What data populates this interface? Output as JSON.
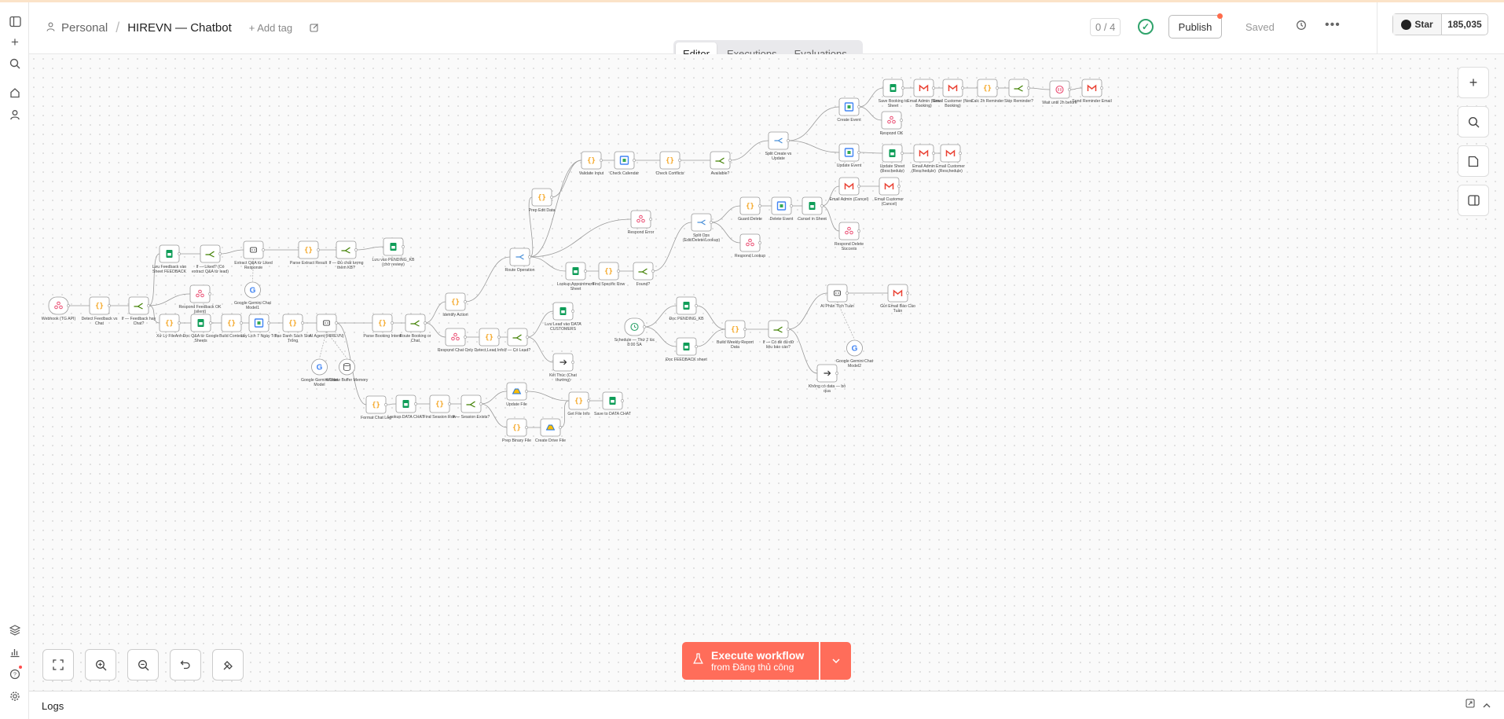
{
  "header": {
    "project": "Personal",
    "workflow_name": "HIREVN — Chatbot",
    "add_tag": "+ Add tag",
    "counter": "0 / 4",
    "publish": "Publish",
    "saved": "Saved",
    "star": "Star",
    "star_count": "185,035"
  },
  "tabs": [
    "Editor",
    "Executions",
    "Evaluations"
  ],
  "execute": {
    "title": "Execute workflow",
    "subtitle": "from Đăng thủ công"
  },
  "logs": {
    "label": "Logs"
  },
  "nodes": [
    {
      "label": "Webhook (TG API)",
      "icon": "webhook",
      "color": "#ea4b71"
    },
    {
      "label": "Detect Feedback vs Chat",
      "icon": "code"
    },
    {
      "label": "If — Feedback hay Chat?",
      "icon": "if"
    },
    {
      "label": "Lưu Feedback vào Sheet FEEDBACK",
      "icon": "sheets"
    },
    {
      "label": "If — Liked? (Có extract Q&A từ lead)",
      "icon": "if"
    },
    {
      "label": "Extract Q&A từ Liked Response",
      "icon": "agent"
    },
    {
      "label": "Parse Extract Result",
      "icon": "code"
    },
    {
      "label": "If — Đủ chất lượng thêm KB?",
      "icon": "if"
    },
    {
      "label": "Lưu vào PENDING_KB (chờ review)",
      "icon": "sheets"
    },
    {
      "label": "Google Gemini Chat Model1",
      "icon": "gemini"
    },
    {
      "label": "Respond Feedback OK (silent)",
      "icon": "webhook"
    },
    {
      "label": "Xử Lý FileAnh",
      "icon": "code"
    },
    {
      "label": "Đọc Q&A từ Google Sheets",
      "icon": "sheets"
    },
    {
      "label": "Build Context",
      "icon": "code"
    },
    {
      "label": "Lấy Lịch 7 Ngày Tới",
      "icon": "calendar"
    },
    {
      "label": "Tạo Danh Sách Slot Trống",
      "icon": "code"
    },
    {
      "label": "AI Agent (HIREVN)",
      "icon": "agent"
    },
    {
      "label": "Google Gemini Chat Model",
      "icon": "gemini"
    },
    {
      "label": "Window Buffer Memory",
      "icon": "memory"
    },
    {
      "label": "Parse Booking Intent",
      "icon": "code"
    },
    {
      "label": "Route Booking or Chat",
      "icon": "if"
    },
    {
      "label": "Identify Action",
      "icon": "code"
    },
    {
      "label": "Respond Chat Only",
      "icon": "webhook"
    },
    {
      "label": "Detect Lead Info",
      "icon": "code"
    },
    {
      "label": "If — Có Lead?",
      "icon": "if"
    },
    {
      "label": "Lưu Lead vào DATA CUSTOMERS",
      "icon": "sheets"
    },
    {
      "label": "Kết Thúc (Chat thường)",
      "icon": "noop"
    },
    {
      "label": "Format Chat Log",
      "icon": "code"
    },
    {
      "label": "Lookup DATA CHAT",
      "icon": "sheets"
    },
    {
      "label": "Find Session Row",
      "icon": "code"
    },
    {
      "label": "If — Session Exists?",
      "icon": "if"
    },
    {
      "label": "Update File",
      "icon": "drive"
    },
    {
      "label": "Prep Binary File",
      "icon": "code"
    },
    {
      "label": "Create Drive File",
      "icon": "drive"
    },
    {
      "label": "Get File Info",
      "icon": "code"
    },
    {
      "label": "Save to DATA CHAT",
      "icon": "sheets"
    },
    {
      "label": "Route Operation",
      "icon": "switch"
    },
    {
      "label": "Prep Edit Data",
      "icon": "code"
    },
    {
      "label": "Validate Input",
      "icon": "code"
    },
    {
      "label": "Check Calendar",
      "icon": "calendar"
    },
    {
      "label": "Check Conflicts",
      "icon": "code"
    },
    {
      "label": "Available?",
      "icon": "if"
    },
    {
      "label": "Split Create vs Update",
      "icon": "switch"
    },
    {
      "label": "Create Event",
      "icon": "calendar"
    },
    {
      "label": "Update Event",
      "icon": "calendar"
    },
    {
      "label": "Respond OK",
      "icon": "webhook"
    },
    {
      "label": "Save Booking to Sheet",
      "icon": "sheets"
    },
    {
      "label": "Email Admin (New Booking)",
      "icon": "gmail"
    },
    {
      "label": "Email Customer (New Booking)",
      "icon": "gmail"
    },
    {
      "label": "Calc 2h Reminder",
      "icon": "code"
    },
    {
      "label": "Skip Reminder?",
      "icon": "if"
    },
    {
      "label": "Wait until 2h before",
      "icon": "wait"
    },
    {
      "label": "Send Reminder Email",
      "icon": "gmail"
    },
    {
      "label": "Update Sheet (Reschedule)",
      "icon": "sheets"
    },
    {
      "label": "Email Admin (Reschedule)",
      "icon": "gmail"
    },
    {
      "label": "Email Customer (Reschedule)",
      "icon": "gmail"
    },
    {
      "label": "Email Admin (Cancel)",
      "icon": "gmail"
    },
    {
      "label": "Email Customer (Cancel)",
      "icon": "gmail"
    },
    {
      "label": "Respond Delete Success",
      "icon": "webhook"
    },
    {
      "label": "Respond Error",
      "icon": "webhook"
    },
    {
      "label": "Split Ops (Edit/Delete/Lookup)",
      "icon": "switch"
    },
    {
      "label": "Guard Delete",
      "icon": "code"
    },
    {
      "label": "Delete Event",
      "icon": "calendar"
    },
    {
      "label": "Cancel in Sheet",
      "icon": "sheets"
    },
    {
      "label": "Respond Lookup",
      "icon": "webhook"
    },
    {
      "label": "Lookup Appointment Sheet",
      "icon": "sheets"
    },
    {
      "label": "Find Specific Row",
      "icon": "code"
    },
    {
      "label": "Found?",
      "icon": "if"
    },
    {
      "label": "Schedule — Thứ 2 lúc 8:00 SA",
      "icon": "schedule"
    },
    {
      "label": "Đọc PENDING_KB",
      "icon": "sheets"
    },
    {
      "label": "Đọc FEEDBACK sheet",
      "icon": "sheets"
    },
    {
      "label": "Build Weekly Report Data",
      "icon": "code"
    },
    {
      "label": "If — Có đề đủ dữ liệu báo cáo?",
      "icon": "if"
    },
    {
      "label": "AI Phân Tích Tuần",
      "icon": "agent"
    },
    {
      "label": "Gửi Email Báo Cáo Tuần",
      "icon": "gmail"
    },
    {
      "label": "Google Gemini Chat Model2",
      "icon": "gemini"
    },
    {
      "label": "Không có data — bỏ qua",
      "icon": "noop"
    }
  ],
  "colors": {
    "accent": "#ff6d5a",
    "if": "#408000",
    "code": "#f5a623",
    "sheets": "#0f9d58",
    "webhook": "#ea4b71",
    "gmail": "#ea4335",
    "calendar": "#4285f4",
    "switch": "#4a90d9"
  }
}
